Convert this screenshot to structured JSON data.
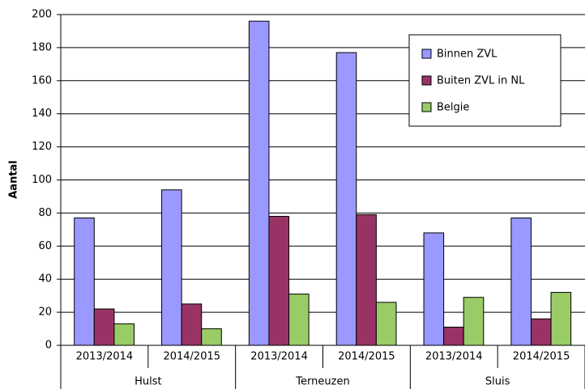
{
  "chart_data": {
    "type": "bar",
    "ylabel": "Aantal",
    "categories": [
      "2013/2014",
      "2014/2015",
      "2013/2014",
      "2014/2015",
      "2013/2014",
      "2014/2015"
    ],
    "category_groups": [
      "Hulst",
      "Terneuzen",
      "Sluis"
    ],
    "series": [
      {
        "name": "Binnen ZVL",
        "color": "#9999ff",
        "values": [
          77,
          94,
          196,
          177,
          68,
          77
        ]
      },
      {
        "name": "Buiten ZVL in NL",
        "color": "#993366",
        "values": [
          22,
          25,
          78,
          79,
          11,
          16
        ]
      },
      {
        "name": "Belgie",
        "color": "#99cc66",
        "values": [
          13,
          10,
          31,
          26,
          29,
          32
        ]
      }
    ],
    "ylim": [
      0,
      200
    ],
    "yticks": [
      0,
      20,
      40,
      60,
      80,
      100,
      120,
      140,
      160,
      180,
      200
    ],
    "grid": true,
    "legend": "upper right"
  }
}
